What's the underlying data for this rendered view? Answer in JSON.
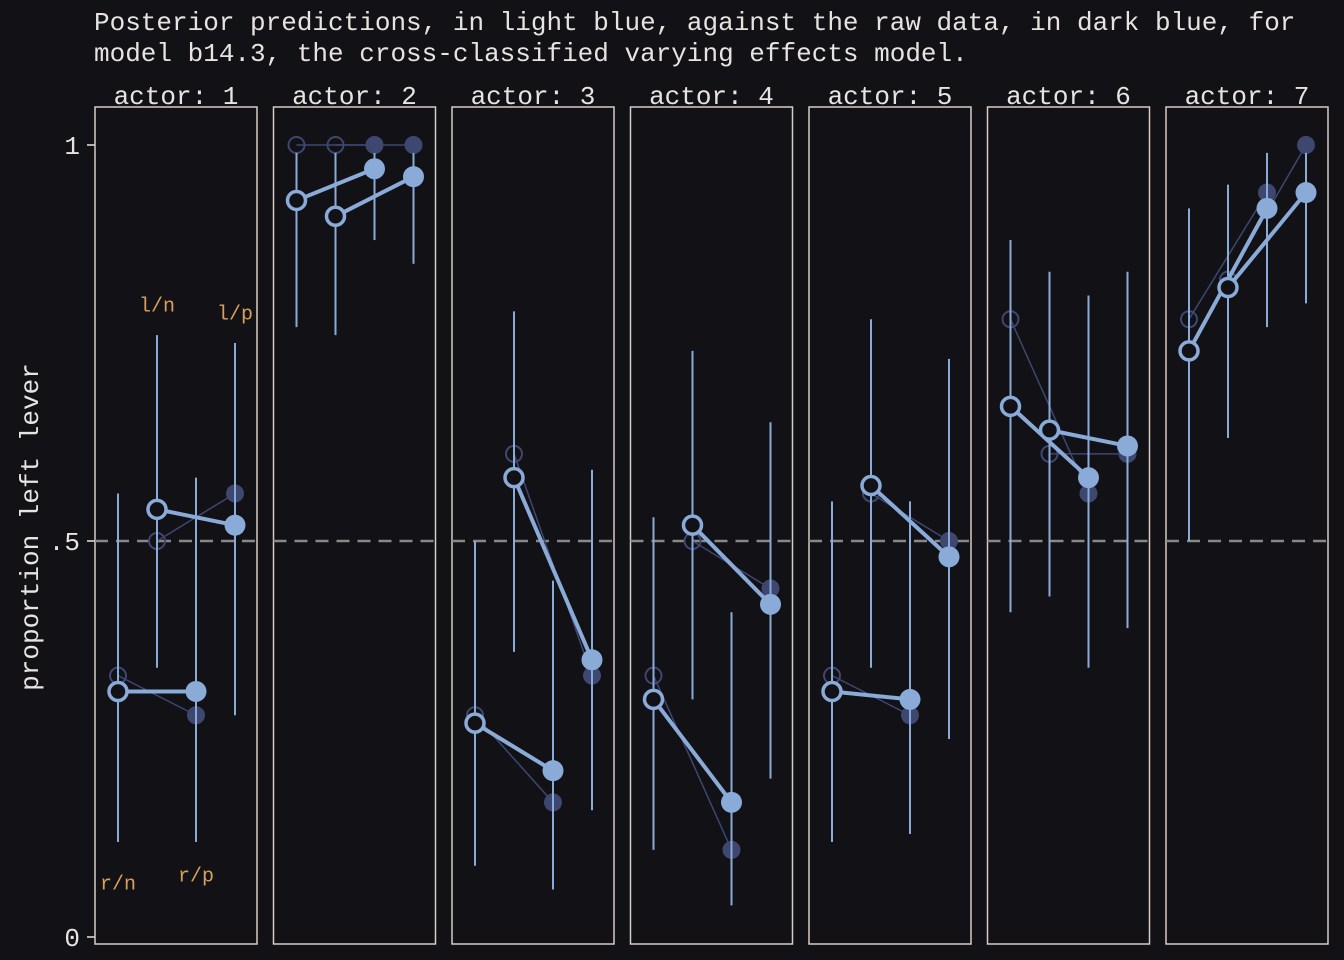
{
  "title_line1": "Posterior predictions, in light blue, against the raw data, in dark blue, for",
  "title_line2": "model b14.3, the cross-classified varying effects model.",
  "colors": {
    "background": "#111116",
    "panel_border": "#d8ccc4",
    "text": "#e6e3e1",
    "posterior": "#8aaad8",
    "raw": "#3d4770",
    "annotation": "#d8a05c",
    "reference_line": "#888888"
  },
  "chart_data": {
    "type": "scatter",
    "ylabel": "proportion left lever",
    "ylim": [
      0,
      1
    ],
    "yticks": [
      {
        "value": 0,
        "label": "0"
      },
      {
        "value": 0.5,
        "label": ".5"
      },
      {
        "value": 1,
        "label": "1"
      }
    ],
    "reference_line": 0.5,
    "conditions": [
      "r/n",
      "l/n",
      "r/p",
      "l/p"
    ],
    "condition_labels": [
      {
        "label": "r/n",
        "y": 0.07
      },
      {
        "label": "l/n",
        "y": 0.8
      },
      {
        "label": "r/p",
        "y": 0.08
      },
      {
        "label": "l/p",
        "y": 0.79
      }
    ],
    "panels": [
      {
        "label": "actor: 1",
        "raw": [
          0.33,
          0.5,
          0.28,
          0.56
        ],
        "fitted": [
          0.31,
          0.54,
          0.31,
          0.52
        ],
        "lower": [
          0.12,
          0.34,
          0.12,
          0.28
        ],
        "upper": [
          0.56,
          0.76,
          0.58,
          0.75
        ]
      },
      {
        "label": "actor: 2",
        "raw": [
          1.0,
          1.0,
          1.0,
          1.0
        ],
        "fitted": [
          0.93,
          0.91,
          0.97,
          0.96
        ],
        "lower": [
          0.77,
          0.76,
          0.88,
          0.85
        ],
        "upper": [
          0.99,
          0.99,
          0.99,
          0.99
        ]
      },
      {
        "label": "actor: 3",
        "raw": [
          0.28,
          0.61,
          0.17,
          0.33
        ],
        "fitted": [
          0.27,
          0.58,
          0.21,
          0.35
        ],
        "lower": [
          0.09,
          0.36,
          0.06,
          0.16
        ],
        "upper": [
          0.5,
          0.79,
          0.45,
          0.59
        ]
      },
      {
        "label": "actor: 4",
        "raw": [
          0.33,
          0.5,
          0.11,
          0.44
        ],
        "fitted": [
          0.3,
          0.52,
          0.17,
          0.42
        ],
        "lower": [
          0.11,
          0.3,
          0.04,
          0.2
        ],
        "upper": [
          0.53,
          0.74,
          0.41,
          0.65
        ]
      },
      {
        "label": "actor: 5",
        "raw": [
          0.33,
          0.56,
          0.28,
          0.5
        ],
        "fitted": [
          0.31,
          0.57,
          0.3,
          0.48
        ],
        "lower": [
          0.12,
          0.34,
          0.13,
          0.25
        ],
        "upper": [
          0.55,
          0.78,
          0.55,
          0.73
        ]
      },
      {
        "label": "actor: 6",
        "raw": [
          0.78,
          0.61,
          0.56,
          0.61
        ],
        "fitted": [
          0.67,
          0.64,
          0.58,
          0.62
        ],
        "lower": [
          0.41,
          0.43,
          0.34,
          0.39
        ],
        "upper": [
          0.88,
          0.84,
          0.81,
          0.84
        ]
      },
      {
        "label": "actor: 7",
        "raw": [
          0.78,
          0.83,
          0.94,
          1.0
        ],
        "fitted": [
          0.74,
          0.82,
          0.92,
          0.94
        ],
        "lower": [
          0.5,
          0.63,
          0.77,
          0.8
        ],
        "upper": [
          0.92,
          0.95,
          0.99,
          0.99
        ]
      }
    ]
  }
}
